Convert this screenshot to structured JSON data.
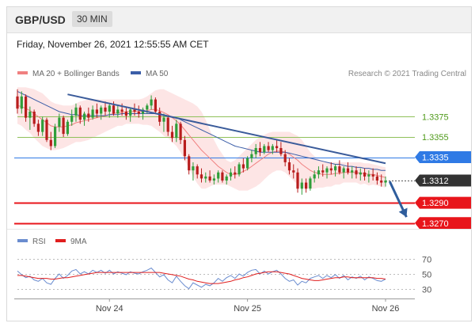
{
  "header": {
    "symbol": "GBP/USD",
    "interval": "30 MIN",
    "datetime": "Friday, November 26, 2021 12:55:55 AM CET"
  },
  "colors": {
    "candle_up": "#2f9e3a",
    "candle_down": "#b81d1d",
    "ma20": "#f08080",
    "bollinger_fill": "#fde0e0",
    "ma50": "#3b5ea8",
    "trendline": "#3a5b9a",
    "arrow": "#2f5d9c",
    "resistance": "#8fc15a",
    "pivot": "#2f7ae5",
    "support": "#e8151b",
    "last_price": "#333333",
    "rsi": "#6a8ccf",
    "rsi_ma": "#e01e1e"
  },
  "chart_data": [
    {
      "type": "candlestick",
      "legend": [
        {
          "name": "MA 20 + Bollinger Bands",
          "color": "#f08080"
        },
        {
          "name": "MA 50",
          "color": "#3b5ea8"
        }
      ],
      "credit": "Research © 2021 Trading Central",
      "ylim": [
        1.3262,
        1.3412
      ],
      "levels": [
        {
          "label": "1.3375",
          "value": 1.3375,
          "kind": "resistance"
        },
        {
          "label": "1.3355",
          "value": 1.3355,
          "kind": "resistance"
        },
        {
          "label": "1.3335",
          "value": 1.3335,
          "kind": "pivot"
        },
        {
          "label": "1.3312",
          "value": 1.3312,
          "kind": "last"
        },
        {
          "label": "1.3290",
          "value": 1.329,
          "kind": "support"
        },
        {
          "label": "1.3270",
          "value": 1.327,
          "kind": "support"
        }
      ],
      "trendline": {
        "from": [
          12,
          1.3397
        ],
        "to": [
          88,
          1.3329
        ]
      },
      "arrow": {
        "from": [
          89,
          1.3311
        ],
        "to": [
          93,
          1.3276
        ]
      },
      "x_ticks": [
        {
          "label": "Nov 24",
          "i": 22
        },
        {
          "label": "Nov 25",
          "i": 55
        },
        {
          "label": "Nov 26",
          "i": 88
        }
      ],
      "candles": [
        [
          1.3395,
          1.3402,
          1.3378,
          1.3383
        ],
        [
          1.3383,
          1.34,
          1.3378,
          1.3395
        ],
        [
          1.3395,
          1.3397,
          1.337,
          1.3374
        ],
        [
          1.3374,
          1.3385,
          1.3362,
          1.338
        ],
        [
          1.338,
          1.3382,
          1.3365,
          1.3368
        ],
        [
          1.3368,
          1.3372,
          1.3356,
          1.336
        ],
        [
          1.336,
          1.3375,
          1.3356,
          1.3372
        ],
        [
          1.3372,
          1.3374,
          1.335,
          1.3352
        ],
        [
          1.3352,
          1.336,
          1.3342,
          1.3346
        ],
        [
          1.3346,
          1.3368,
          1.3344,
          1.3365
        ],
        [
          1.3365,
          1.3378,
          1.336,
          1.3374
        ],
        [
          1.3374,
          1.3376,
          1.3355,
          1.3358
        ],
        [
          1.3358,
          1.3372,
          1.3356,
          1.337
        ],
        [
          1.337,
          1.3382,
          1.3366,
          1.3376
        ],
        [
          1.3376,
          1.3388,
          1.337,
          1.3384
        ],
        [
          1.3384,
          1.3386,
          1.3368,
          1.3372
        ],
        [
          1.3372,
          1.338,
          1.3366,
          1.3378
        ],
        [
          1.3378,
          1.3384,
          1.337,
          1.3374
        ],
        [
          1.3374,
          1.3386,
          1.3372,
          1.3382
        ],
        [
          1.3382,
          1.3388,
          1.3374,
          1.3378
        ],
        [
          1.3378,
          1.3386,
          1.3372,
          1.3384
        ],
        [
          1.3384,
          1.339,
          1.3376,
          1.338
        ],
        [
          1.338,
          1.3388,
          1.3374,
          1.3386
        ],
        [
          1.3386,
          1.339,
          1.3376,
          1.3378
        ],
        [
          1.3378,
          1.3386,
          1.3374,
          1.3382
        ],
        [
          1.3382,
          1.3388,
          1.3376,
          1.338
        ],
        [
          1.338,
          1.3385,
          1.3372,
          1.3376
        ],
        [
          1.3376,
          1.3384,
          1.337,
          1.3382
        ],
        [
          1.3382,
          1.3388,
          1.3376,
          1.338
        ],
        [
          1.338,
          1.3386,
          1.3374,
          1.3378
        ],
        [
          1.3378,
          1.3384,
          1.3372,
          1.3382
        ],
        [
          1.3382,
          1.3388,
          1.3378,
          1.3386
        ],
        [
          1.3386,
          1.3396,
          1.3382,
          1.3392
        ],
        [
          1.3392,
          1.3394,
          1.3378,
          1.338
        ],
        [
          1.338,
          1.3384,
          1.3366,
          1.337
        ],
        [
          1.337,
          1.3378,
          1.336,
          1.3374
        ],
        [
          1.3374,
          1.3376,
          1.3356,
          1.336
        ],
        [
          1.336,
          1.3366,
          1.335,
          1.3354
        ],
        [
          1.3354,
          1.3372,
          1.335,
          1.3368
        ],
        [
          1.3368,
          1.337,
          1.3348,
          1.3352
        ],
        [
          1.3352,
          1.3356,
          1.3332,
          1.3336
        ],
        [
          1.3336,
          1.3338,
          1.3318,
          1.3322
        ],
        [
          1.3322,
          1.333,
          1.3312,
          1.3326
        ],
        [
          1.3326,
          1.3328,
          1.3314,
          1.3318
        ],
        [
          1.3318,
          1.3324,
          1.331,
          1.3314
        ],
        [
          1.3314,
          1.332,
          1.331,
          1.3316
        ],
        [
          1.3316,
          1.3322,
          1.331,
          1.3312
        ],
        [
          1.3312,
          1.3318,
          1.3308,
          1.3314
        ],
        [
          1.3314,
          1.3322,
          1.331,
          1.332
        ],
        [
          1.332,
          1.3322,
          1.331,
          1.3312
        ],
        [
          1.3312,
          1.3318,
          1.3308,
          1.3316
        ],
        [
          1.3316,
          1.3324,
          1.3312,
          1.332
        ],
        [
          1.332,
          1.3326,
          1.3314,
          1.3318
        ],
        [
          1.3318,
          1.333,
          1.3316,
          1.3328
        ],
        [
          1.3328,
          1.3334,
          1.332,
          1.3324
        ],
        [
          1.3324,
          1.3336,
          1.3322,
          1.3334
        ],
        [
          1.3334,
          1.3342,
          1.333,
          1.3338
        ],
        [
          1.3338,
          1.3348,
          1.3334,
          1.3344
        ],
        [
          1.3344,
          1.335,
          1.3336,
          1.334
        ],
        [
          1.334,
          1.3348,
          1.3338,
          1.3346
        ],
        [
          1.3346,
          1.335,
          1.334,
          1.3342
        ],
        [
          1.3342,
          1.3348,
          1.3338,
          1.3346
        ],
        [
          1.3346,
          1.3352,
          1.334,
          1.3344
        ],
        [
          1.3344,
          1.335,
          1.3336,
          1.3338
        ],
        [
          1.3338,
          1.3342,
          1.3326,
          1.333
        ],
        [
          1.333,
          1.3334,
          1.3318,
          1.3322
        ],
        [
          1.3322,
          1.3328,
          1.3314,
          1.332
        ],
        [
          1.332,
          1.3324,
          1.33,
          1.3304
        ],
        [
          1.3304,
          1.3314,
          1.3298,
          1.331
        ],
        [
          1.331,
          1.3314,
          1.33,
          1.3304
        ],
        [
          1.3304,
          1.3316,
          1.3302,
          1.3314
        ],
        [
          1.3314,
          1.3322,
          1.331,
          1.3318
        ],
        [
          1.3318,
          1.3326,
          1.3314,
          1.3322
        ],
        [
          1.3322,
          1.3328,
          1.3316,
          1.332
        ],
        [
          1.332,
          1.3326,
          1.3314,
          1.3324
        ],
        [
          1.3324,
          1.333,
          1.3318,
          1.3322
        ],
        [
          1.3322,
          1.3328,
          1.3316,
          1.3326
        ],
        [
          1.3326,
          1.3332,
          1.3318,
          1.332
        ],
        [
          1.332,
          1.3326,
          1.3314,
          1.3324
        ],
        [
          1.3324,
          1.333,
          1.3318,
          1.332
        ],
        [
          1.332,
          1.3326,
          1.3314,
          1.3322
        ],
        [
          1.3322,
          1.3326,
          1.3314,
          1.3318
        ],
        [
          1.3318,
          1.3324,
          1.3312,
          1.332
        ],
        [
          1.332,
          1.3324,
          1.3312,
          1.3316
        ],
        [
          1.3316,
          1.3322,
          1.331,
          1.3318
        ],
        [
          1.3318,
          1.3324,
          1.3312,
          1.3316
        ],
        [
          1.3316,
          1.332,
          1.3308,
          1.3312
        ],
        [
          1.3312,
          1.3318,
          1.3306,
          1.331
        ],
        [
          1.331,
          1.3316,
          1.3306,
          1.3312
        ]
      ],
      "ma20": [
        1.3386,
        1.3385,
        1.3383,
        1.3381,
        1.3378,
        1.3375,
        1.3372,
        1.3369,
        1.3366,
        1.3365,
        1.3365,
        1.3365,
        1.3366,
        1.3367,
        1.3369,
        1.337,
        1.3371,
        1.3372,
        1.3373,
        1.3374,
        1.3375,
        1.3376,
        1.3377,
        1.3378,
        1.3379,
        1.3379,
        1.338,
        1.338,
        1.338,
        1.338,
        1.338,
        1.3381,
        1.3382,
        1.3382,
        1.3381,
        1.3379,
        1.3377,
        1.3374,
        1.3371,
        1.3367,
        1.3362,
        1.3357,
        1.3352,
        1.3347,
        1.3342,
        1.3338,
        1.3334,
        1.333,
        1.3326,
        1.3323,
        1.332,
        1.3318,
        1.3318,
        1.3319,
        1.3321,
        1.3323,
        1.3326,
        1.3329,
        1.3332,
        1.3335,
        1.3338,
        1.334,
        1.3341,
        1.3341,
        1.334,
        1.3338,
        1.3335,
        1.3332,
        1.3328,
        1.3325,
        1.3322,
        1.332,
        1.3319,
        1.3318,
        1.3318,
        1.3318,
        1.3319,
        1.3319,
        1.332,
        1.332,
        1.332,
        1.332,
        1.3319,
        1.3319,
        1.3318,
        1.3318,
        1.3317,
        1.3316,
        1.3315
      ],
      "bb_upper": [
        1.3404,
        1.3404,
        1.3404,
        1.3403,
        1.3402,
        1.34,
        1.3398,
        1.3394,
        1.339,
        1.3388,
        1.3387,
        1.3386,
        1.3386,
        1.3386,
        1.3388,
        1.339,
        1.3391,
        1.3392,
        1.3392,
        1.3392,
        1.3392,
        1.3392,
        1.3392,
        1.3392,
        1.3392,
        1.3392,
        1.3392,
        1.3392,
        1.3392,
        1.3392,
        1.3393,
        1.3395,
        1.3398,
        1.3401,
        1.3402,
        1.3402,
        1.34,
        1.3398,
        1.3396,
        1.3394,
        1.3392,
        1.339,
        1.3388,
        1.3385,
        1.338,
        1.3372,
        1.3362,
        1.3352,
        1.3344,
        1.3338,
        1.3332,
        1.333,
        1.3332,
        1.3336,
        1.334,
        1.3344,
        1.3348,
        1.3352,
        1.3355,
        1.3357,
        1.3359,
        1.336,
        1.336,
        1.336,
        1.336,
        1.336,
        1.3358,
        1.3356,
        1.3352,
        1.3346,
        1.334,
        1.3336,
        1.3333,
        1.3331,
        1.333,
        1.333,
        1.333,
        1.333,
        1.333,
        1.333,
        1.333,
        1.333,
        1.333,
        1.3329,
        1.3329,
        1.3328,
        1.3327,
        1.3326,
        1.3325
      ],
      "bb_lower": [
        1.3368,
        1.3366,
        1.3362,
        1.3359,
        1.3354,
        1.335,
        1.3346,
        1.3344,
        1.3342,
        1.3342,
        1.3343,
        1.3344,
        1.3346,
        1.3348,
        1.335,
        1.335,
        1.3351,
        1.3352,
        1.3354,
        1.3356,
        1.3358,
        1.336,
        1.3362,
        1.3364,
        1.3366,
        1.3366,
        1.3368,
        1.3368,
        1.3368,
        1.3368,
        1.3367,
        1.3367,
        1.3366,
        1.3363,
        1.336,
        1.3356,
        1.3354,
        1.335,
        1.3346,
        1.334,
        1.3332,
        1.3324,
        1.3316,
        1.3309,
        1.3304,
        1.3304,
        1.3306,
        1.3308,
        1.3308,
        1.3308,
        1.3308,
        1.3306,
        1.3304,
        1.3302,
        1.3302,
        1.3302,
        1.3304,
        1.3306,
        1.3309,
        1.3313,
        1.3317,
        1.332,
        1.3322,
        1.3322,
        1.332,
        1.3316,
        1.3312,
        1.3308,
        1.3304,
        1.3304,
        1.3304,
        1.3304,
        1.3305,
        1.3305,
        1.3306,
        1.3306,
        1.3308,
        1.3308,
        1.331,
        1.331,
        1.331,
        1.331,
        1.3308,
        1.3309,
        1.3307,
        1.3308,
        1.3307,
        1.3306,
        1.3305
      ],
      "ma50": [
        1.34,
        1.3398,
        1.3396,
        1.3394,
        1.3392,
        1.339,
        1.3388,
        1.3386,
        1.3384,
        1.3382,
        1.338,
        1.3379,
        1.3378,
        1.3377,
        1.3377,
        1.3376,
        1.3376,
        1.3376,
        1.3376,
        1.3376,
        1.3376,
        1.3376,
        1.3377,
        1.3377,
        1.3377,
        1.3378,
        1.3378,
        1.3378,
        1.3378,
        1.3378,
        1.3378,
        1.3378,
        1.3378,
        1.3378,
        1.3378,
        1.3377,
        1.3376,
        1.3375,
        1.3374,
        1.3372,
        1.337,
        1.3368,
        1.3366,
        1.3364,
        1.3362,
        1.336,
        1.3358,
        1.3356,
        1.3354,
        1.3352,
        1.335,
        1.3348,
        1.3346,
        1.3345,
        1.3344,
        1.3343,
        1.3342,
        1.3341,
        1.334,
        1.334,
        1.334,
        1.334,
        1.334,
        1.334,
        1.334,
        1.3339,
        1.3338,
        1.3337,
        1.3336,
        1.3335,
        1.3334,
        1.3333,
        1.3332,
        1.3331,
        1.333,
        1.3329,
        1.3328,
        1.3328,
        1.3327,
        1.3326,
        1.3326,
        1.3325,
        1.3325,
        1.3324,
        1.3324,
        1.3323,
        1.3323,
        1.3322,
        1.3322
      ]
    },
    {
      "type": "line",
      "legend": [
        {
          "name": "RSI",
          "color": "#6a8ccf"
        },
        {
          "name": "9MA",
          "color": "#e01e1e"
        }
      ],
      "ylim": [
        20,
        80
      ],
      "y_ticks": [
        70,
        50,
        30
      ],
      "series": [
        {
          "name": "RSI",
          "values": [
            54,
            49,
            45,
            47,
            42,
            40,
            44,
            38,
            36,
            44,
            50,
            44,
            48,
            54,
            56,
            50,
            53,
            50,
            55,
            52,
            55,
            51,
            55,
            50,
            53,
            51,
            49,
            53,
            51,
            50,
            53,
            55,
            58,
            52,
            46,
            49,
            42,
            38,
            47,
            40,
            34,
            30,
            38,
            35,
            32,
            36,
            34,
            38,
            44,
            40,
            45,
            48,
            44,
            50,
            47,
            52,
            55,
            56,
            50,
            54,
            50,
            53,
            55,
            50,
            44,
            40,
            42,
            35,
            40,
            38,
            44,
            46,
            48,
            44,
            48,
            45,
            49,
            44,
            48,
            42,
            46,
            44,
            47,
            42,
            46,
            44,
            41,
            40,
            43
          ]
        },
        {
          "name": "9MA",
          "values": [
            48,
            48,
            47,
            46,
            45,
            44,
            44,
            44,
            43,
            43,
            44,
            45,
            45,
            46,
            47,
            48,
            49,
            50,
            51,
            52,
            52,
            52,
            52,
            52,
            52,
            52,
            52,
            52,
            52,
            52,
            52,
            52,
            52,
            52,
            52,
            51,
            50,
            49,
            48,
            47,
            45,
            43,
            42,
            40,
            39,
            38,
            37,
            37,
            37,
            38,
            39,
            40,
            42,
            43,
            45,
            46,
            48,
            50,
            51,
            52,
            53,
            53,
            53,
            52,
            51,
            50,
            48,
            46,
            44,
            43,
            42,
            41,
            41,
            42,
            43,
            44,
            45,
            45,
            46,
            46,
            45,
            45,
            45,
            45,
            45,
            45,
            44,
            44,
            43
          ]
        }
      ]
    }
  ]
}
